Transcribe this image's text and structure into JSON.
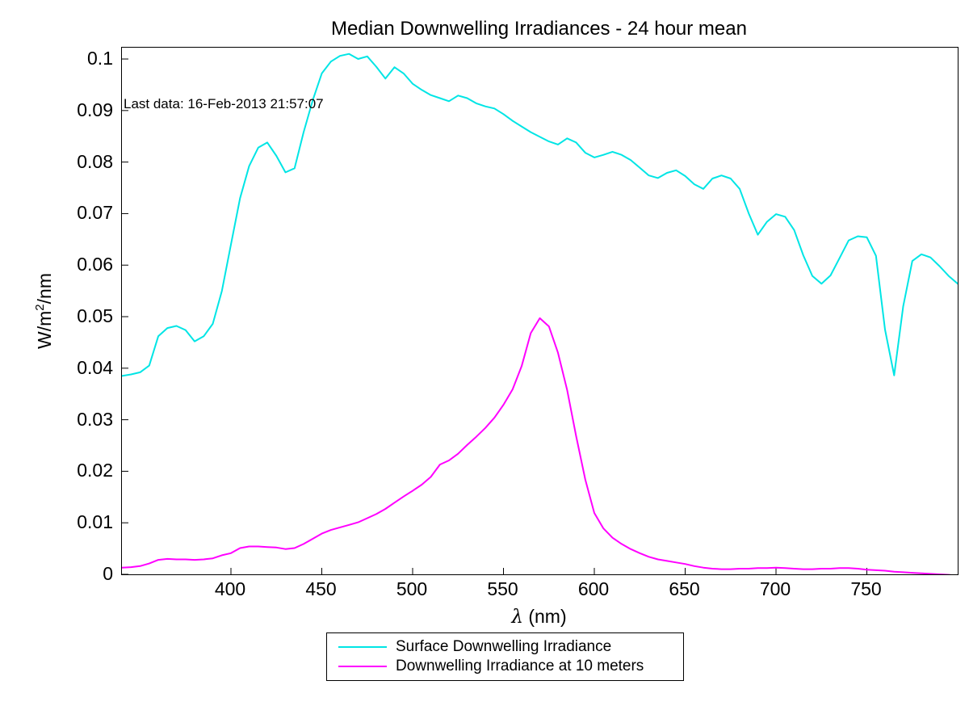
{
  "title": "Median Downwelling Irradiances - 24 hour mean",
  "annotation": "Last data: 16-Feb-2013 21:57:07",
  "axes": {
    "ylabel_parts": {
      "pre": "W/m",
      "sup": "2",
      "post": "/nm"
    },
    "xlabel_parts": {
      "lambda": "λ",
      "rest": " (nm)"
    }
  },
  "legend": {
    "items": [
      {
        "label": "Surface Downwelling Irradiance",
        "color": "#00E5E5"
      },
      {
        "label": "Downwelling Irradiance at 10 meters",
        "color": "#FF00FF"
      }
    ]
  },
  "chart_data": {
    "type": "line",
    "title": "Median Downwelling Irradiances - 24 hour mean",
    "xlabel": "λ (nm)",
    "ylabel": "W/m^2/nm",
    "annotation": "Last data: 16-Feb-2013 21:57:07",
    "grid": false,
    "legend_position": "outside-bottom-center",
    "xlim": [
      340,
      800
    ],
    "ylim": [
      0,
      0.1022
    ],
    "x_ticks": [
      400,
      450,
      500,
      550,
      600,
      650,
      700,
      750
    ],
    "y_ticks": [
      0,
      0.01,
      0.02,
      0.03,
      0.04,
      0.05,
      0.06,
      0.07,
      0.08,
      0.09,
      0.1
    ],
    "x": [
      340,
      345,
      350,
      355,
      360,
      365,
      370,
      375,
      380,
      385,
      390,
      395,
      400,
      405,
      410,
      415,
      420,
      425,
      430,
      435,
      440,
      445,
      450,
      455,
      460,
      465,
      470,
      475,
      480,
      485,
      490,
      495,
      500,
      505,
      510,
      515,
      520,
      525,
      530,
      535,
      540,
      545,
      550,
      555,
      560,
      565,
      570,
      575,
      580,
      585,
      590,
      595,
      600,
      605,
      610,
      615,
      620,
      625,
      630,
      635,
      640,
      645,
      650,
      655,
      660,
      665,
      670,
      675,
      680,
      685,
      690,
      695,
      700,
      705,
      710,
      715,
      720,
      725,
      730,
      735,
      740,
      745,
      750,
      755,
      760,
      765,
      770,
      775,
      780,
      785,
      790,
      795,
      800
    ],
    "series": [
      {
        "name": "Surface Downwelling Irradiance",
        "color": "#00E5E5",
        "values": [
          0.0385,
          0.0388,
          0.0392,
          0.0405,
          0.0462,
          0.0478,
          0.0482,
          0.0474,
          0.0452,
          0.0462,
          0.0486,
          0.055,
          0.064,
          0.073,
          0.0792,
          0.0828,
          0.0838,
          0.0812,
          0.078,
          0.0788,
          0.0858,
          0.092,
          0.0972,
          0.0995,
          0.1006,
          0.101,
          0.1,
          0.1005,
          0.0985,
          0.0962,
          0.0984,
          0.0972,
          0.0952,
          0.094,
          0.093,
          0.0924,
          0.0918,
          0.0929,
          0.0924,
          0.0914,
          0.0908,
          0.0904,
          0.0893,
          0.088,
          0.0869,
          0.0858,
          0.0849,
          0.084,
          0.0834,
          0.0846,
          0.0838,
          0.0818,
          0.0809,
          0.0814,
          0.082,
          0.0814,
          0.0804,
          0.0789,
          0.0774,
          0.0769,
          0.0779,
          0.0784,
          0.0773,
          0.0757,
          0.0748,
          0.0768,
          0.0774,
          0.0768,
          0.0748,
          0.07,
          0.0659,
          0.0684,
          0.0699,
          0.0694,
          0.0668,
          0.0619,
          0.0579,
          0.0564,
          0.058,
          0.0614,
          0.0648,
          0.0656,
          0.0654,
          0.0618,
          0.0475,
          0.0386,
          0.052,
          0.0608,
          0.0621,
          0.0615,
          0.0598,
          0.0579,
          0.0564
        ]
      },
      {
        "name": "Downwelling Irradiance at 10 meters",
        "color": "#FF00FF",
        "values": [
          0.0013,
          0.0014,
          0.0016,
          0.0021,
          0.0028,
          0.003,
          0.0029,
          0.0029,
          0.0028,
          0.0029,
          0.0031,
          0.0037,
          0.0041,
          0.0051,
          0.0054,
          0.0054,
          0.0053,
          0.0052,
          0.0049,
          0.0051,
          0.0059,
          0.0069,
          0.0079,
          0.0086,
          0.0091,
          0.0096,
          0.0101,
          0.0109,
          0.0117,
          0.0127,
          0.0139,
          0.0151,
          0.0162,
          0.0174,
          0.0189,
          0.0213,
          0.0221,
          0.0234,
          0.0251,
          0.0267,
          0.0284,
          0.0304,
          0.0329,
          0.0359,
          0.0404,
          0.0468,
          0.0497,
          0.0481,
          0.043,
          0.0358,
          0.0268,
          0.0184,
          0.0119,
          0.0089,
          0.0071,
          0.0059,
          0.0049,
          0.0041,
          0.0034,
          0.0029,
          0.0026,
          0.0023,
          0.002,
          0.0016,
          0.0013,
          0.0011,
          0.001,
          0.001,
          0.0011,
          0.0011,
          0.0012,
          0.0012,
          0.0013,
          0.0012,
          0.0011,
          0.001,
          0.001,
          0.0011,
          0.0011,
          0.0012,
          0.0012,
          0.0011,
          0.0009,
          0.0008,
          0.0007,
          0.0005,
          0.0004,
          0.0003,
          0.0002,
          0.0001,
          0.0,
          -0.0001,
          -0.0003
        ]
      }
    ]
  }
}
